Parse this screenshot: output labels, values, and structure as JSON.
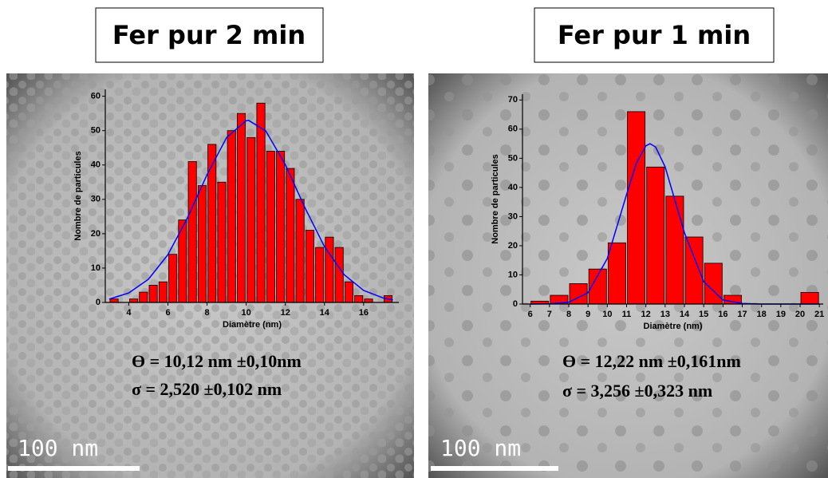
{
  "chart_data": [
    {
      "type": "histogram",
      "title": "Fer pur 2 min",
      "xlabel": "Diamètre (nm)",
      "ylabel": "Nombre de particules",
      "bins": [
        3,
        3.5,
        4,
        4.5,
        5,
        5.5,
        6,
        6.5,
        7,
        7.5,
        8,
        8.5,
        9,
        9.5,
        10,
        10.5,
        11,
        11.5,
        12,
        12.5,
        13,
        13.5,
        14,
        14.5,
        15,
        15.5,
        16,
        16.5,
        17,
        17.5
      ],
      "values": [
        1,
        0,
        1,
        3,
        5,
        6,
        14,
        24,
        41,
        34,
        46,
        35,
        50,
        55,
        48,
        58,
        44,
        44,
        39,
        30,
        21,
        16,
        19,
        16,
        6,
        2,
        1,
        0,
        2
      ],
      "color": "#ff0000",
      "fit": {
        "color": "#0000ff",
        "x": [
          3,
          4,
          5,
          6,
          7,
          8,
          9,
          10,
          10.12,
          11,
          12,
          13,
          14,
          15,
          16,
          17,
          17.5
        ],
        "values": [
          0.98,
          2.77,
          6.74,
          13.9,
          24.6,
          37.2,
          48.0,
          52.9,
          53,
          49.9,
          40.1,
          27.6,
          16.2,
          8.1,
          3.5,
          1.3,
          0.73
        ]
      },
      "xlim": [
        2.8,
        17.8
      ],
      "xticks": [
        4,
        6,
        8,
        10,
        12,
        14,
        16
      ],
      "ylim": [
        0,
        62
      ],
      "yticks": [
        0,
        10,
        20,
        30,
        40,
        50,
        60
      ],
      "annotations": [
        "ϴ = 10,12 nm ±0,10nm",
        "σ = 2,520 ±0,102 nm"
      ],
      "scale_bar": "100 nm"
    },
    {
      "type": "histogram",
      "title": "Fer pur 1 min",
      "xlabel": "Diamètre (nm)",
      "ylabel": "Nombre de particules",
      "bins": [
        6,
        7,
        8,
        9,
        10,
        11,
        12,
        13,
        14,
        15,
        16,
        17,
        18,
        19,
        20,
        21
      ],
      "values": [
        1,
        3,
        7,
        12,
        21,
        66,
        47,
        37,
        23,
        14,
        3,
        0,
        0,
        0,
        4
      ],
      "color": "#ff0000",
      "fit": {
        "color": "#0000ff",
        "x": [
          6,
          7,
          8,
          9,
          10,
          11,
          11.5,
          12,
          12.22,
          12.5,
          13,
          14,
          15,
          16,
          17,
          18,
          19,
          20,
          21
        ],
        "values": [
          0,
          0.05,
          0.59,
          3.9,
          15.6,
          37.6,
          48.2,
          54.3,
          55,
          53.9,
          47.1,
          24.5,
          7.7,
          1.4,
          0.2,
          0,
          0,
          0,
          0
        ]
      },
      "xlim": [
        5.6,
        21.2
      ],
      "xticks": [
        6,
        7,
        8,
        9,
        10,
        11,
        12,
        13,
        14,
        15,
        16,
        17,
        18,
        19,
        20,
        21
      ],
      "ylim": [
        0,
        72
      ],
      "yticks": [
        0,
        10,
        20,
        30,
        40,
        50,
        60,
        70
      ],
      "annotations": [
        "ϴ = 12,22 nm ±0,161nm",
        "σ = 3,256 ±0,323 nm"
      ],
      "scale_bar": "100 nm"
    }
  ]
}
